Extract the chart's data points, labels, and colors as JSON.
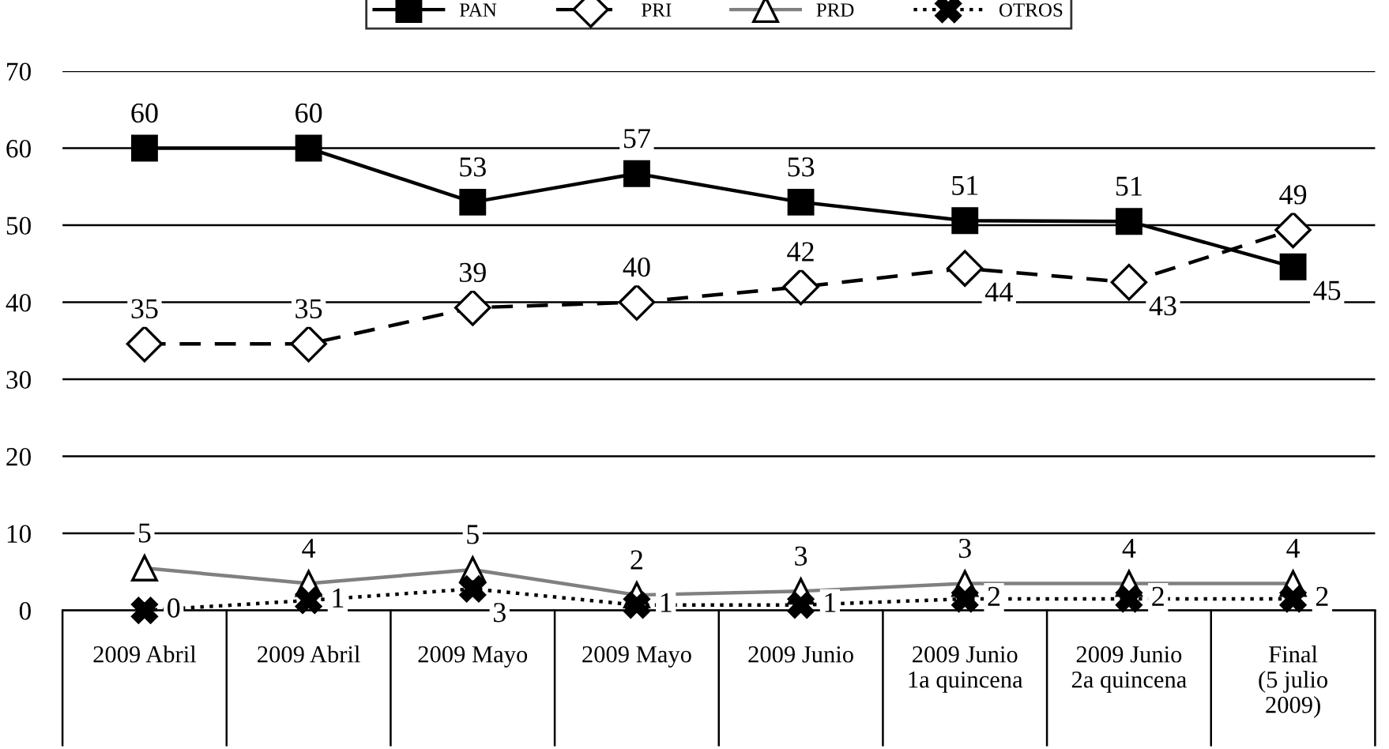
{
  "chart_data": {
    "type": "line",
    "categories": [
      "2009 Abril",
      "2009 Abril",
      "2009 Mayo",
      "2009 Mayo",
      "2009 Junio",
      "2009 Junio\n1a quincena",
      "2009 Junio\n2a quincena",
      "Final\n(5 julio\n2009)"
    ],
    "series": [
      {
        "name": "PAN",
        "color": "#000000",
        "marker": "square",
        "line_style": "solid",
        "values": [
          60,
          60,
          53,
          56.7,
          53,
          50.6,
          50.5,
          44.6
        ],
        "value_labels": [
          "60",
          "60",
          "53",
          "57",
          "53",
          "51",
          "51",
          "45"
        ]
      },
      {
        "name": "PRI",
        "color": "#000000",
        "marker": "diamond",
        "line_style": "dashed",
        "values": [
          34.6,
          34.6,
          39.3,
          40,
          42,
          44.4,
          42.6,
          49.4
        ],
        "value_labels": [
          "35",
          "35",
          "39",
          "40",
          "42",
          "44",
          "43",
          "49"
        ]
      },
      {
        "name": "PRD",
        "color": "#808080",
        "marker": "triangle",
        "line_style": "solid",
        "values": [
          5.5,
          3.5,
          5.3,
          2,
          2.5,
          3.5,
          3.5,
          3.5
        ],
        "value_labels": [
          "5",
          "4",
          "5",
          "2",
          "3",
          "3",
          "4",
          "4"
        ]
      },
      {
        "name": "OTROS",
        "color": "#000000",
        "marker": "cross",
        "line_style": "dotted",
        "values": [
          0,
          1.3,
          2.8,
          0.7,
          0.7,
          1.5,
          1.5,
          1.5
        ],
        "value_labels": [
          "0",
          "1",
          "3",
          "1",
          "1",
          "2",
          "2",
          "2"
        ]
      }
    ],
    "ylim": [
      0,
      70
    ],
    "yticks": [
      0,
      10,
      20,
      30,
      40,
      50,
      60,
      70
    ],
    "grid": "y",
    "legend": "top"
  }
}
